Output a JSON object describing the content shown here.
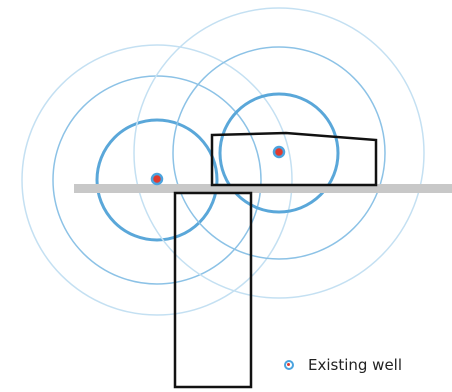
{
  "diagram": {
    "colors": {
      "ring_strong": "#5aa7d9",
      "ring_medium": "#8cc2e6",
      "ring_faint": "#bfdcf0",
      "well_fill": "#e03a2f",
      "well_ring": "#4aa3df",
      "road": "#c8c8c8",
      "parcel_stroke": "#111111"
    },
    "wells": [
      {
        "name": "existing-well-left"
      },
      {
        "name": "existing-well-right"
      }
    ],
    "parcels": [
      {
        "name": "parcel-upper-right"
      },
      {
        "name": "parcel-lower"
      }
    ]
  },
  "legend": {
    "label": "Existing well",
    "icon": "existing-well-marker-icon"
  }
}
